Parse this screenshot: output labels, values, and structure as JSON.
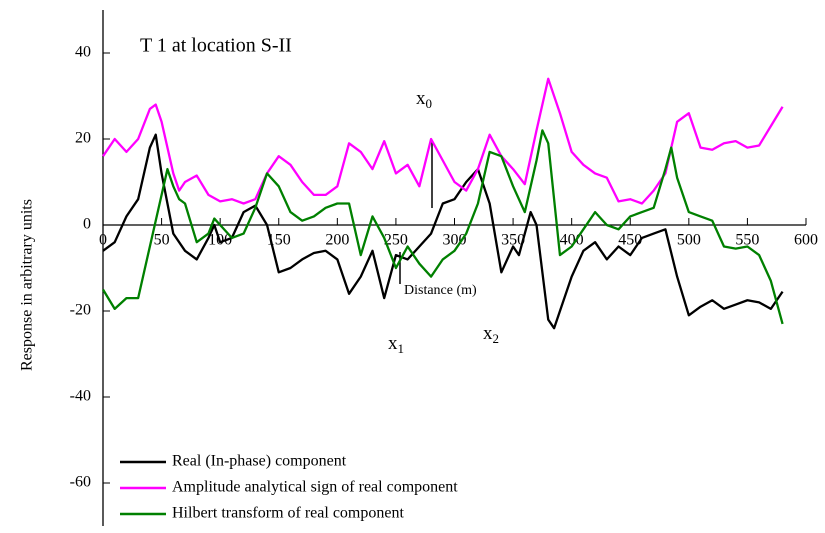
{
  "chart_data": {
    "type": "line",
    "title": "T 1 at location S-II",
    "x_label": "Distance (m)",
    "y_label": "Response in arbitrary units",
    "xlim": [
      0,
      600
    ],
    "xticks": [
      0,
      50,
      100,
      150,
      200,
      250,
      300,
      350,
      400,
      450,
      500,
      550,
      600
    ],
    "ylim": [
      -70,
      50
    ],
    "yticks": [
      -60,
      -40,
      -20,
      0,
      20,
      40
    ],
    "legend": "lower left",
    "annotations": [
      {
        "text": "x",
        "sub": "0"
      },
      {
        "text": "x",
        "sub": "1"
      },
      {
        "text": "x",
        "sub": "2"
      }
    ],
    "series": [
      {
        "name": "Real (In-phase) component",
        "color": "#000000",
        "x": [
          0,
          10,
          20,
          30,
          40,
          45,
          50,
          60,
          70,
          80,
          90,
          95,
          100,
          110,
          120,
          130,
          140,
          150,
          160,
          170,
          180,
          190,
          200,
          210,
          220,
          230,
          240,
          250,
          260,
          270,
          280,
          290,
          300,
          310,
          320,
          330,
          340,
          350,
          355,
          365,
          370,
          380,
          385,
          390,
          400,
          410,
          420,
          430,
          440,
          450,
          460,
          470,
          480,
          490,
          500,
          510,
          520,
          530,
          540,
          550,
          560,
          570,
          580
        ],
        "values": [
          -6,
          -4,
          2,
          6,
          18,
          21,
          12,
          -2,
          -6,
          -8,
          -3,
          0,
          -4,
          -3,
          3,
          4.5,
          0,
          -11,
          -10,
          -8,
          -6.5,
          -6,
          -8,
          -16,
          -12,
          -6,
          -17,
          -7,
          -8,
          -5,
          -2,
          5,
          6,
          10,
          13,
          5,
          -11,
          -5,
          -7,
          3,
          0,
          -22,
          -24,
          -20,
          -12,
          -6,
          -4,
          -8,
          -5,
          -7,
          -3,
          -2,
          -1,
          -12,
          -21,
          -19,
          -17.5,
          -19.5,
          -18.5,
          -17.5,
          -18,
          -19.5,
          -15.5
        ]
      },
      {
        "name": "Amplitude analytical sign of real component",
        "color": "#ff00ff",
        "x": [
          0,
          10,
          20,
          30,
          40,
          45,
          50,
          60,
          65,
          70,
          80,
          90,
          100,
          110,
          120,
          130,
          140,
          150,
          160,
          170,
          180,
          190,
          200,
          210,
          220,
          230,
          240,
          250,
          260,
          270,
          280,
          290,
          300,
          310,
          320,
          330,
          340,
          350,
          360,
          370,
          380,
          390,
          400,
          410,
          420,
          430,
          440,
          450,
          460,
          470,
          480,
          490,
          500,
          510,
          520,
          530,
          540,
          550,
          560,
          570,
          580
        ],
        "values": [
          16,
          20,
          17,
          20,
          27,
          28,
          24,
          12,
          8,
          10,
          11.5,
          7,
          5.5,
          6,
          5,
          6,
          12,
          16,
          14,
          10,
          7,
          7,
          9,
          19,
          17,
          13,
          19.5,
          12,
          14,
          9,
          20,
          15,
          10,
          8,
          13,
          21,
          16,
          13,
          9.5,
          22,
          34,
          26,
          17,
          14,
          12,
          11,
          5.5,
          6,
          5,
          8,
          12,
          24,
          26,
          18,
          17.5,
          19,
          19.5,
          18,
          18.5,
          23,
          27.5
        ]
      },
      {
        "name": "Hilbert transform of real component",
        "color": "#008000",
        "x": [
          0,
          10,
          20,
          30,
          40,
          45,
          55,
          60,
          65,
          70,
          80,
          90,
          95,
          100,
          110,
          120,
          130,
          140,
          150,
          160,
          170,
          180,
          190,
          200,
          210,
          220,
          230,
          240,
          250,
          260,
          270,
          280,
          290,
          300,
          310,
          320,
          330,
          340,
          350,
          360,
          370,
          375,
          380,
          390,
          400,
          410,
          420,
          430,
          440,
          450,
          460,
          470,
          480,
          485,
          490,
          500,
          510,
          520,
          530,
          540,
          550,
          560,
          570,
          580
        ],
        "values": [
          -15,
          -19.5,
          -17,
          -17,
          -5,
          1,
          13,
          9,
          6,
          5,
          -4,
          -2,
          1.5,
          0,
          -3,
          -2,
          4,
          12,
          9,
          3,
          1,
          2,
          4,
          5,
          5,
          -7,
          2,
          -3,
          -10,
          -5,
          -9,
          -12,
          -8,
          -6,
          -2,
          5,
          17,
          16,
          9,
          3,
          15,
          22,
          19,
          -7,
          -5,
          -1,
          3,
          0,
          -1,
          2,
          3,
          4,
          13,
          18,
          11,
          3,
          2,
          1,
          -5,
          -5.5,
          -5,
          -7,
          -13,
          -23
        ]
      }
    ]
  }
}
